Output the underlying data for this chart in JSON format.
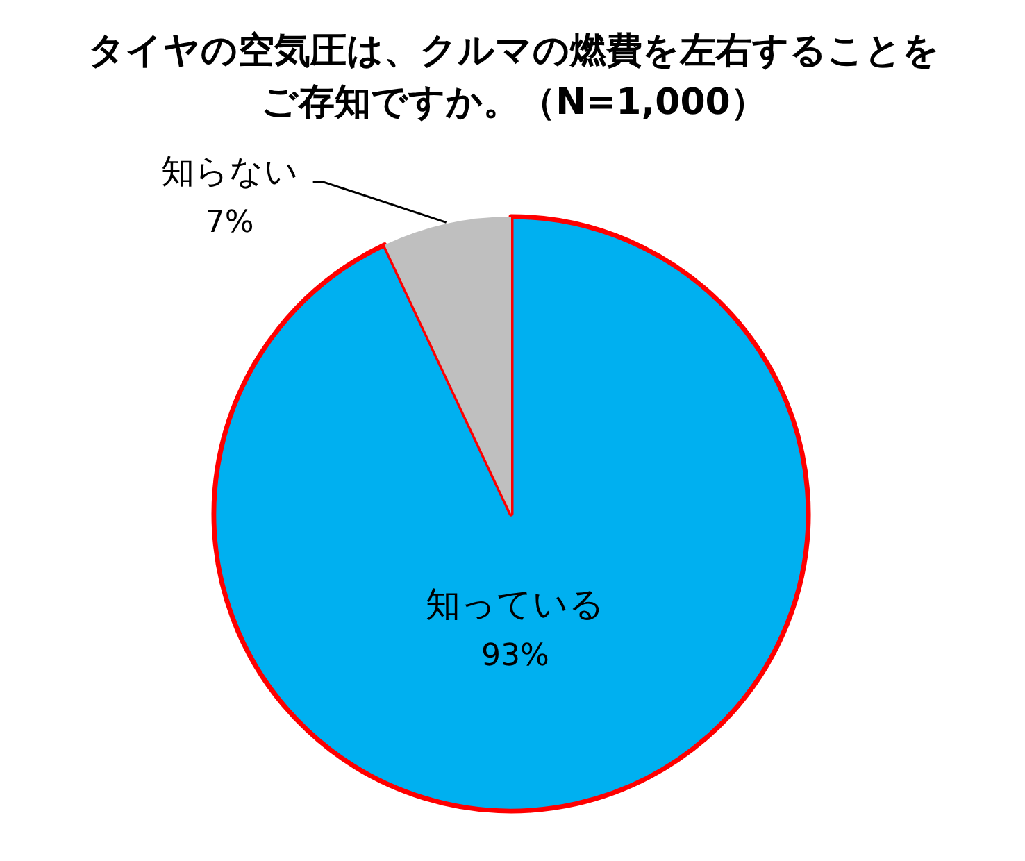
{
  "chart_data": {
    "type": "pie",
    "title": "タイヤの空気圧は、クルマの燃費を左右することをご存知ですか。（N=1,000）",
    "categories": [
      "知っている",
      "知らない"
    ],
    "values": [
      93,
      7
    ],
    "colors": [
      "#00b0f0",
      "#bfbfbf"
    ],
    "value_labels": [
      "93%",
      "7%"
    ]
  }
}
